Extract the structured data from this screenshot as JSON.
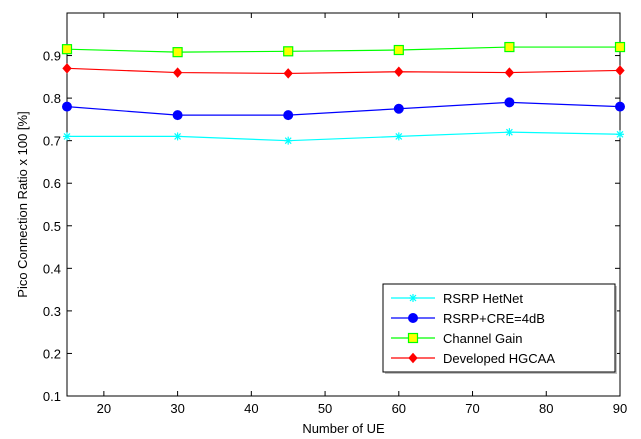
{
  "chart_data": {
    "type": "line",
    "title": "",
    "xlabel": "Number of UE",
    "ylabel": "Pico Connection Ratio x 100 [%]",
    "xlim": [
      15,
      90
    ],
    "ylim": [
      0.1,
      1.0
    ],
    "x_ticks": [
      20,
      30,
      40,
      50,
      60,
      70,
      80,
      90
    ],
    "y_ticks": [
      0.1,
      0.2,
      0.3,
      0.4,
      0.5,
      0.6,
      0.7,
      0.8,
      0.9
    ],
    "x": [
      15,
      30,
      45,
      60,
      75,
      90
    ],
    "grid": false,
    "legend_position": "bottom-right",
    "series": [
      {
        "name": "RSRP HetNet",
        "values": [
          0.71,
          0.71,
          0.7,
          0.71,
          0.72,
          0.715
        ],
        "color": "#00FFFF",
        "marker": "star"
      },
      {
        "name": "RSRP+CRE=4dB",
        "values": [
          0.78,
          0.76,
          0.76,
          0.775,
          0.79,
          0.78
        ],
        "color": "#0000FF",
        "marker": "circle"
      },
      {
        "name": "Channel Gain",
        "values": [
          0.915,
          0.908,
          0.91,
          0.913,
          0.92,
          0.92
        ],
        "color": "#00FF00",
        "marker": "square"
      },
      {
        "name": "Developed HGCAA",
        "values": [
          0.87,
          0.86,
          0.858,
          0.862,
          0.86,
          0.865
        ],
        "color": "#FF0000",
        "marker": "diamond"
      }
    ]
  }
}
